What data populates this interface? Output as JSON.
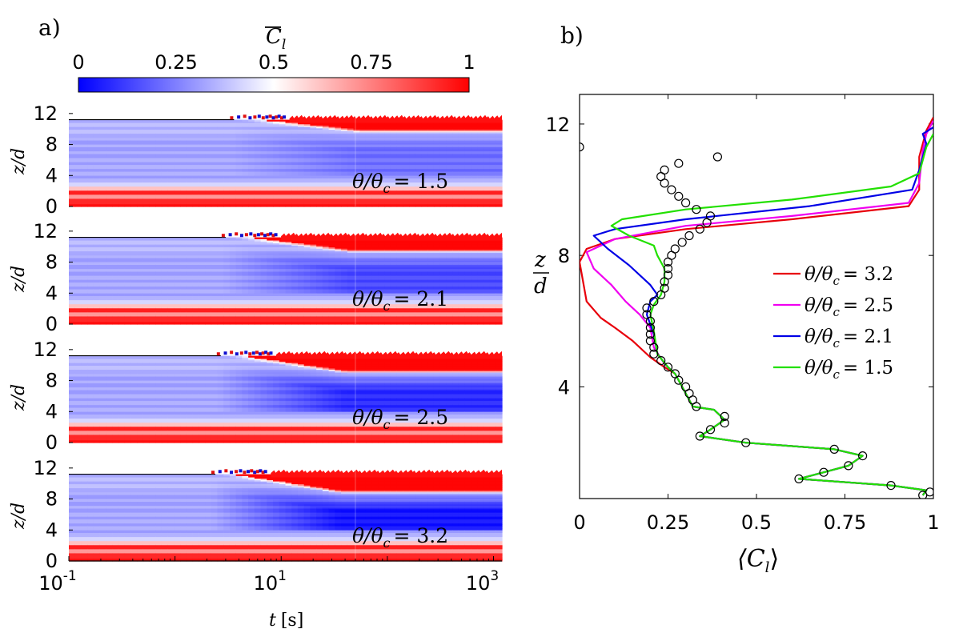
{
  "panel_a_label": "a)",
  "panel_b_label": "b)",
  "colorbar": {
    "label_main": "C",
    "label_sub": "l",
    "ticks": [
      "0",
      "0.25",
      "0.5",
      "0.75",
      "1"
    ],
    "colors": {
      "low": "#0000ff",
      "mid": "#ffffff",
      "high": "#ff0000"
    }
  },
  "chart_data": [
    {
      "type": "heatmap",
      "panel": "a",
      "xlabel_main": "t",
      "xlabel_unit": "[s]",
      "ylabel_main": "z/d",
      "xscale": "log",
      "xlim": [
        0.1,
        1200
      ],
      "ylim": [
        0,
        12.5
      ],
      "xticks": [
        {
          "value": 0.1,
          "base": "10",
          "exp": "-1"
        },
        {
          "value": 10,
          "base": "10",
          "exp": "1"
        },
        {
          "value": 1000,
          "base": "10",
          "exp": "3"
        }
      ],
      "yticks": [
        "0",
        "4",
        "8",
        "12"
      ],
      "colormap": "blue-white-red",
      "panels": [
        {
          "label": "θ/θc = 1.5",
          "label_main": "θ/θ",
          "label_sub": "c",
          "label_value": "= 1.5",
          "front_final_z": 9.6,
          "front_onset_t": 6.0,
          "bed_top_z": 11.2,
          "front_blue_intensity": 0.35
        },
        {
          "label": "θ/θc = 2.1",
          "label_main": "θ/θ",
          "label_sub": "c",
          "label_value": "= 2.1",
          "front_final_z": 9.3,
          "front_onset_t": 5.0,
          "bed_top_z": 11.2,
          "front_blue_intensity": 0.6
        },
        {
          "label": "θ/θc = 2.5",
          "label_main": "θ/θ",
          "label_sub": "c",
          "label_value": "= 2.5",
          "front_final_z": 9.0,
          "front_onset_t": 4.5,
          "bed_top_z": 11.2,
          "front_blue_intensity": 0.8
        },
        {
          "label": "θ/θc = 3.2",
          "label_main": "θ/θ",
          "label_sub": "c",
          "label_value": "= 3.2",
          "front_final_z": 8.8,
          "front_onset_t": 4.0,
          "bed_top_z": 11.2,
          "front_blue_intensity": 0.95
        }
      ]
    },
    {
      "type": "line",
      "panel": "b",
      "xlabel_main": "⟨C",
      "xlabel_sub": "l",
      "xlabel_end": "⟩",
      "ylabel_num": "z",
      "ylabel_den": "d",
      "xlim": [
        0,
        1
      ],
      "ylim": [
        0.6,
        12.9
      ],
      "xticks": [
        "0",
        "0.25",
        "0.5",
        "0.75",
        "1"
      ],
      "yticks": [
        "4",
        "8",
        "12"
      ],
      "legend_position": "right",
      "series": [
        {
          "name": "θ/θc = 3.2",
          "label_main": "θ/θ",
          "label_sub": "c",
          "label_value": "= 3.2",
          "color": "#e8000b",
          "points": [
            [
              1.0,
              12.2
            ],
            [
              0.98,
              11.8
            ],
            [
              0.96,
              11.0
            ],
            [
              0.96,
              10.0
            ],
            [
              0.93,
              9.5
            ],
            [
              0.6,
              9.1
            ],
            [
              0.3,
              8.8
            ],
            [
              0.1,
              8.5
            ],
            [
              0.02,
              8.2
            ],
            [
              0.0,
              7.8
            ],
            [
              0.01,
              7.2
            ],
            [
              0.02,
              6.6
            ],
            [
              0.06,
              6.1
            ],
            [
              0.1,
              5.8
            ],
            [
              0.15,
              5.4
            ],
            [
              0.2,
              4.9
            ],
            [
              0.24,
              4.6
            ],
            [
              0.27,
              4.4
            ],
            [
              0.29,
              4.0
            ],
            [
              0.31,
              3.6
            ],
            [
              0.32,
              3.4
            ],
            [
              0.38,
              3.3
            ],
            [
              0.41,
              3.0
            ],
            [
              0.37,
              2.7
            ],
            [
              0.34,
              2.5
            ],
            [
              0.47,
              2.3
            ],
            [
              0.72,
              2.1
            ],
            [
              0.8,
              1.9
            ],
            [
              0.76,
              1.6
            ],
            [
              0.69,
              1.4
            ],
            [
              0.62,
              1.2
            ],
            [
              0.88,
              1.0
            ],
            [
              0.98,
              0.85
            ],
            [
              0.97,
              0.7
            ]
          ]
        },
        {
          "name": "θ/θc = 2.5",
          "label_main": "θ/θ",
          "label_sub": "c",
          "label_value": "= 2.5",
          "color": "#f000f0",
          "points": [
            [
              1.0,
              12.1
            ],
            [
              0.98,
              11.7
            ],
            [
              0.97,
              11.2
            ],
            [
              0.96,
              10.2
            ],
            [
              0.93,
              9.6
            ],
            [
              0.6,
              9.2
            ],
            [
              0.3,
              8.9
            ],
            [
              0.1,
              8.5
            ],
            [
              0.02,
              8.1
            ],
            [
              0.04,
              7.6
            ],
            [
              0.09,
              7.1
            ],
            [
              0.13,
              6.6
            ],
            [
              0.17,
              6.2
            ],
            [
              0.2,
              5.8
            ],
            [
              0.21,
              5.2
            ],
            [
              0.24,
              4.7
            ],
            [
              0.27,
              4.4
            ],
            [
              0.29,
              4.0
            ],
            [
              0.31,
              3.6
            ],
            [
              0.32,
              3.4
            ],
            [
              0.38,
              3.3
            ],
            [
              0.41,
              3.0
            ],
            [
              0.37,
              2.7
            ],
            [
              0.34,
              2.5
            ],
            [
              0.47,
              2.3
            ],
            [
              0.72,
              2.1
            ],
            [
              0.8,
              1.9
            ],
            [
              0.76,
              1.6
            ],
            [
              0.69,
              1.4
            ],
            [
              0.62,
              1.2
            ],
            [
              0.88,
              1.0
            ],
            [
              0.98,
              0.85
            ],
            [
              0.97,
              0.7
            ]
          ]
        },
        {
          "name": "θ/θc = 2.1",
          "label_main": "θ/θ",
          "label_sub": "c",
          "label_value": "= 2.1",
          "color": "#0000e6",
          "points": [
            [
              1.0,
              11.9
            ],
            [
              0.97,
              11.7
            ],
            [
              0.98,
              11.4
            ],
            [
              0.96,
              10.6
            ],
            [
              0.94,
              10.0
            ],
            [
              0.65,
              9.5
            ],
            [
              0.3,
              9.1
            ],
            [
              0.1,
              8.8
            ],
            [
              0.04,
              8.6
            ],
            [
              0.08,
              8.2
            ],
            [
              0.14,
              7.7
            ],
            [
              0.2,
              7.1
            ],
            [
              0.22,
              6.8
            ],
            [
              0.2,
              6.6
            ],
            [
              0.19,
              6.2
            ],
            [
              0.21,
              5.6
            ],
            [
              0.22,
              5.0
            ],
            [
              0.25,
              4.6
            ],
            [
              0.27,
              4.4
            ],
            [
              0.29,
              4.0
            ],
            [
              0.31,
              3.6
            ],
            [
              0.32,
              3.4
            ],
            [
              0.38,
              3.3
            ],
            [
              0.41,
              3.0
            ],
            [
              0.37,
              2.7
            ],
            [
              0.34,
              2.5
            ],
            [
              0.47,
              2.3
            ],
            [
              0.72,
              2.1
            ],
            [
              0.8,
              1.9
            ],
            [
              0.76,
              1.6
            ],
            [
              0.69,
              1.4
            ],
            [
              0.62,
              1.2
            ],
            [
              0.88,
              1.0
            ],
            [
              0.98,
              0.85
            ],
            [
              0.97,
              0.7
            ]
          ]
        },
        {
          "name": "θ/θc = 1.5",
          "label_main": "θ/θ",
          "label_sub": "c",
          "label_value": "= 1.5",
          "color": "#22e000",
          "points": [
            [
              1.0,
              11.7
            ],
            [
              0.98,
              11.3
            ],
            [
              0.96,
              10.5
            ],
            [
              0.88,
              10.1
            ],
            [
              0.6,
              9.7
            ],
            [
              0.3,
              9.4
            ],
            [
              0.12,
              9.1
            ],
            [
              0.09,
              8.9
            ],
            [
              0.14,
              8.6
            ],
            [
              0.21,
              8.3
            ],
            [
              0.22,
              8.0
            ],
            [
              0.24,
              7.6
            ],
            [
              0.24,
              7.2
            ],
            [
              0.23,
              6.8
            ],
            [
              0.21,
              6.5
            ],
            [
              0.2,
              6.2
            ],
            [
              0.21,
              5.7
            ],
            [
              0.22,
              5.0
            ],
            [
              0.25,
              4.6
            ],
            [
              0.27,
              4.4
            ],
            [
              0.29,
              4.0
            ],
            [
              0.31,
              3.6
            ],
            [
              0.32,
              3.4
            ],
            [
              0.38,
              3.3
            ],
            [
              0.41,
              3.0
            ],
            [
              0.37,
              2.7
            ],
            [
              0.34,
              2.5
            ],
            [
              0.47,
              2.3
            ],
            [
              0.72,
              2.1
            ],
            [
              0.8,
              1.9
            ],
            [
              0.76,
              1.6
            ],
            [
              0.69,
              1.4
            ],
            [
              0.62,
              1.2
            ],
            [
              0.88,
              1.0
            ],
            [
              0.98,
              0.85
            ],
            [
              0.97,
              0.7
            ]
          ]
        }
      ],
      "markers": {
        "symbol": "open-circle",
        "color": "#000000",
        "points": [
          [
            0.0,
            11.3
          ],
          [
            0.39,
            11.0
          ],
          [
            0.28,
            10.8
          ],
          [
            0.24,
            10.6
          ],
          [
            0.23,
            10.4
          ],
          [
            0.24,
            10.2
          ],
          [
            0.26,
            10.0
          ],
          [
            0.28,
            9.8
          ],
          [
            0.3,
            9.6
          ],
          [
            0.33,
            9.4
          ],
          [
            0.37,
            9.2
          ],
          [
            0.36,
            9.0
          ],
          [
            0.34,
            8.8
          ],
          [
            0.31,
            8.6
          ],
          [
            0.29,
            8.4
          ],
          [
            0.27,
            8.2
          ],
          [
            0.26,
            8.0
          ],
          [
            0.25,
            7.8
          ],
          [
            0.25,
            7.6
          ],
          [
            0.25,
            7.4
          ],
          [
            0.24,
            7.2
          ],
          [
            0.24,
            7.0
          ],
          [
            0.23,
            6.8
          ],
          [
            0.21,
            6.6
          ],
          [
            0.19,
            6.4
          ],
          [
            0.19,
            6.2
          ],
          [
            0.2,
            6.0
          ],
          [
            0.2,
            5.8
          ],
          [
            0.2,
            5.6
          ],
          [
            0.2,
            5.4
          ],
          [
            0.21,
            5.2
          ],
          [
            0.21,
            5.0
          ],
          [
            0.23,
            4.8
          ],
          [
            0.25,
            4.6
          ],
          [
            0.27,
            4.4
          ],
          [
            0.28,
            4.2
          ],
          [
            0.3,
            4.0
          ],
          [
            0.31,
            3.8
          ],
          [
            0.32,
            3.6
          ],
          [
            0.33,
            3.4
          ],
          [
            0.41,
            3.1
          ],
          [
            0.41,
            2.9
          ],
          [
            0.37,
            2.7
          ],
          [
            0.34,
            2.5
          ],
          [
            0.47,
            2.3
          ],
          [
            0.72,
            2.1
          ],
          [
            0.8,
            1.9
          ],
          [
            0.76,
            1.6
          ],
          [
            0.69,
            1.4
          ],
          [
            0.62,
            1.2
          ],
          [
            0.88,
            1.0
          ],
          [
            0.99,
            0.8
          ],
          [
            0.97,
            0.7
          ]
        ]
      }
    }
  ]
}
